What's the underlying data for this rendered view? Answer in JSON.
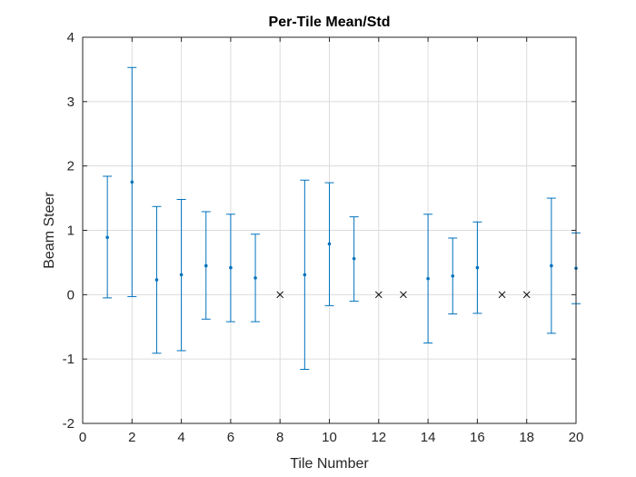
{
  "chart_data": {
    "type": "scatter",
    "title": "Per-Tile Mean/Std",
    "xlabel": "Tile Number",
    "ylabel": "Beam Steer",
    "xlim": [
      0,
      20
    ],
    "ylim": [
      -2,
      4
    ],
    "xticks": [
      0,
      2,
      4,
      6,
      8,
      10,
      12,
      14,
      16,
      18,
      20
    ],
    "yticks": [
      -2,
      -1,
      0,
      1,
      2,
      3,
      4
    ],
    "grid": true,
    "series": [
      {
        "type": "errorbar",
        "color": "#0072BD",
        "points": [
          {
            "x": 1,
            "mean": 0.89,
            "lower": -0.05,
            "upper": 1.84
          },
          {
            "x": 2,
            "mean": 1.75,
            "lower": -0.03,
            "upper": 3.53
          },
          {
            "x": 3,
            "mean": 0.23,
            "lower": -0.91,
            "upper": 1.37
          },
          {
            "x": 4,
            "mean": 0.31,
            "lower": -0.87,
            "upper": 1.48
          },
          {
            "x": 5,
            "mean": 0.45,
            "lower": -0.38,
            "upper": 1.29
          },
          {
            "x": 6,
            "mean": 0.42,
            "lower": -0.42,
            "upper": 1.25
          },
          {
            "x": 7,
            "mean": 0.26,
            "lower": -0.42,
            "upper": 0.94
          },
          {
            "x": 9,
            "mean": 0.31,
            "lower": -1.16,
            "upper": 1.78
          },
          {
            "x": 10,
            "mean": 0.79,
            "lower": -0.17,
            "upper": 1.74
          },
          {
            "x": 11,
            "mean": 0.56,
            "lower": -0.1,
            "upper": 1.21
          },
          {
            "x": 14,
            "mean": 0.25,
            "lower": -0.75,
            "upper": 1.25
          },
          {
            "x": 15,
            "mean": 0.29,
            "lower": -0.3,
            "upper": 0.88
          },
          {
            "x": 16,
            "mean": 0.42,
            "lower": -0.29,
            "upper": 1.13
          },
          {
            "x": 19,
            "mean": 0.45,
            "lower": -0.6,
            "upper": 1.5
          },
          {
            "x": 20,
            "mean": 0.41,
            "lower": -0.14,
            "upper": 0.96
          }
        ]
      },
      {
        "type": "marker-x",
        "color": "#000000",
        "points": [
          {
            "x": 8,
            "y": 0
          },
          {
            "x": 12,
            "y": 0
          },
          {
            "x": 13,
            "y": 0
          },
          {
            "x": 17,
            "y": 0
          },
          {
            "x": 18,
            "y": 0
          }
        ]
      }
    ]
  }
}
